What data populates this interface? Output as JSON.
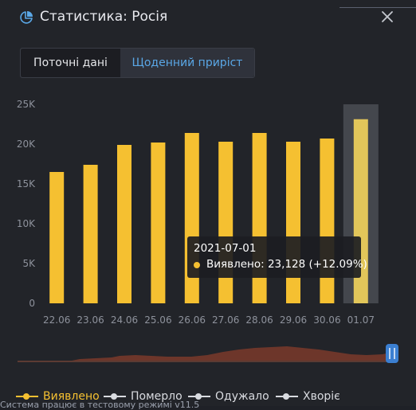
{
  "window": {
    "title": "Статистика: Росія"
  },
  "tabs": [
    {
      "label": "Поточні дані"
    },
    {
      "label": "Щоденний приріст"
    }
  ],
  "chart_data": {
    "type": "bar",
    "categories": [
      "22.06",
      "23.06",
      "24.06",
      "25.06",
      "26.06",
      "27.06",
      "28.06",
      "29.06",
      "30.06",
      "01.07"
    ],
    "series": [
      {
        "name": "Виявлено",
        "values": [
          16500,
          17400,
          19900,
          20200,
          21400,
          20300,
          21400,
          20300,
          20700,
          23128
        ]
      }
    ],
    "yticks": [
      "0",
      "5K",
      "10K",
      "15K",
      "20K",
      "25K"
    ],
    "ylim": [
      0,
      25000
    ],
    "highlighted_category": "01.07",
    "colors": {
      "bar": "#f5c031",
      "highlight_bar": "#e2c65a",
      "highlight_band": "#50535a"
    }
  },
  "tooltip": {
    "date": "2021-07-01",
    "text": "Виявлено: 23,128 (+12.09%)"
  },
  "legend": [
    {
      "label": "Виявлено",
      "color": "#f5c031"
    },
    {
      "label": "Померло",
      "color": "#d9dbe0"
    },
    {
      "label": "Одужало",
      "color": "#d9dbe0"
    },
    {
      "label": "Хворіє",
      "color": "#d9dbe0"
    }
  ],
  "footer": {
    "text": "Система працює в тестовому режимі v11.5"
  },
  "icons": {
    "header": "pie-chart-icon",
    "close": "close-icon",
    "navigator_handle": "slider-handle-icon"
  }
}
